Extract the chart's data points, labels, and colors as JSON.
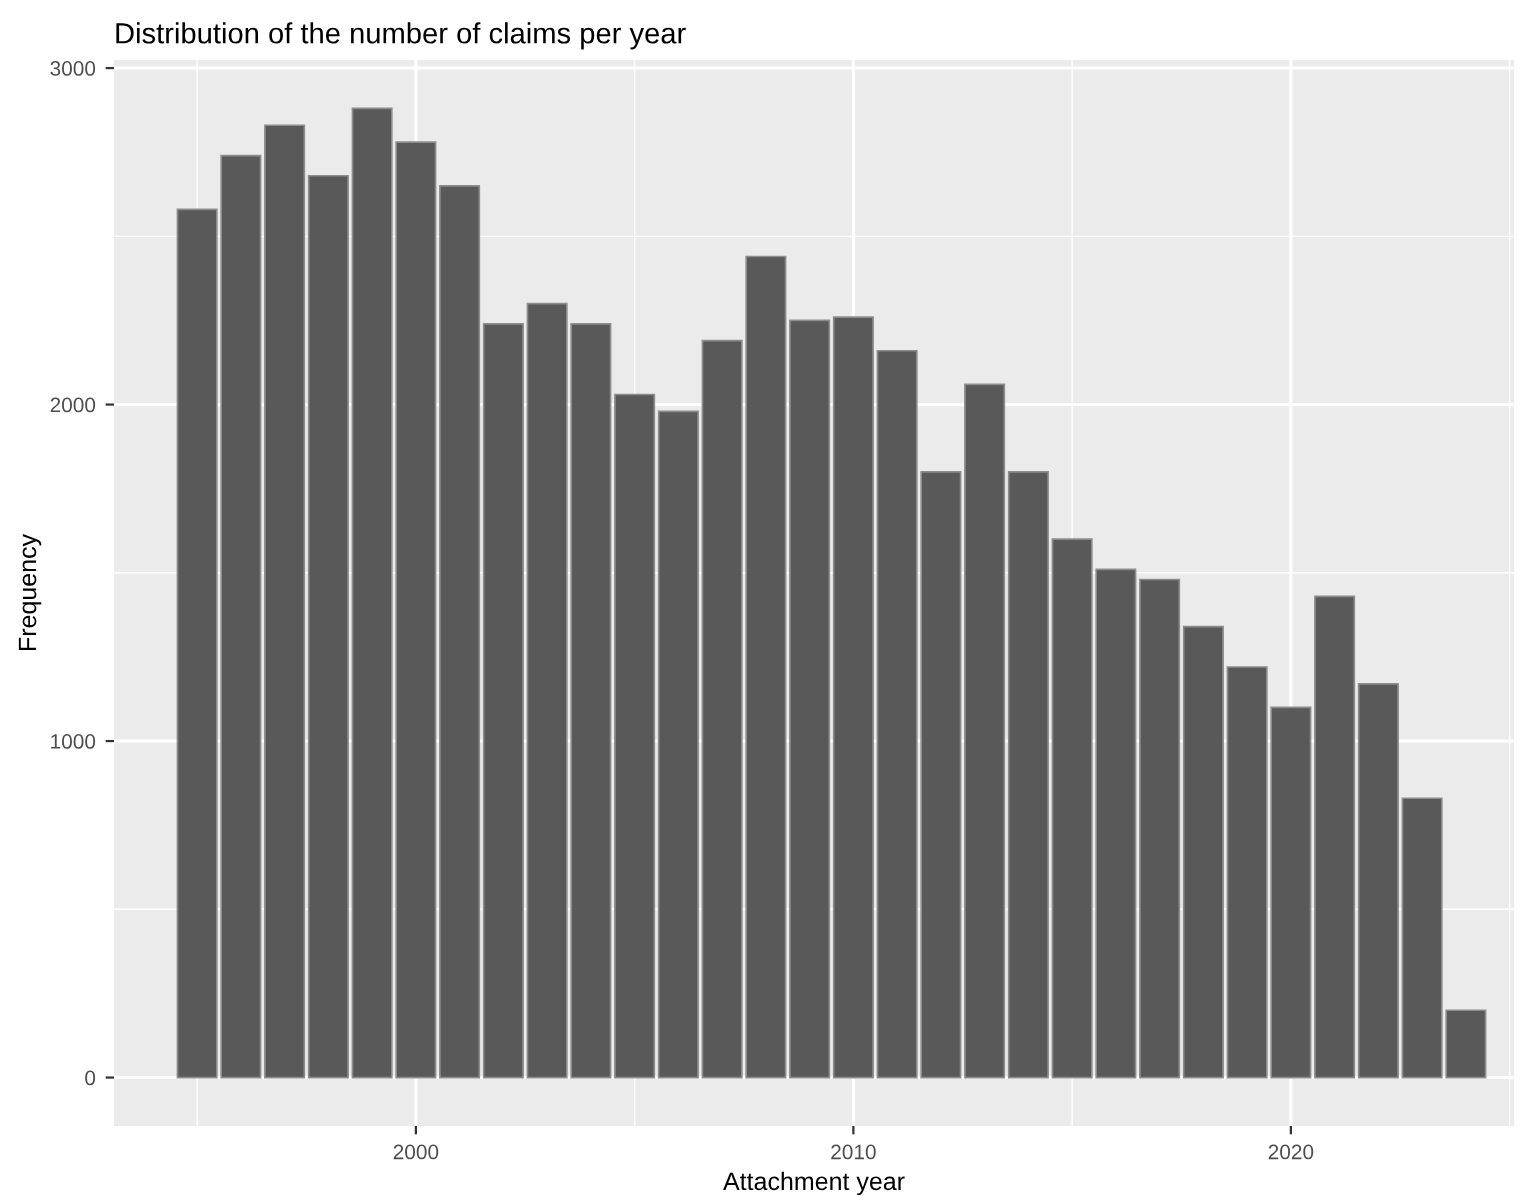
{
  "chart_data": {
    "type": "bar",
    "title": "Distribution of the number of claims per year",
    "xlabel": "Attachment year",
    "ylabel": "Frequency",
    "x": [
      1995,
      1996,
      1997,
      1998,
      1999,
      2000,
      2001,
      2002,
      2003,
      2004,
      2005,
      2006,
      2007,
      2008,
      2009,
      2010,
      2011,
      2012,
      2013,
      2014,
      2015,
      2016,
      2017,
      2018,
      2019,
      2020,
      2021,
      2022,
      2023,
      2024
    ],
    "values": [
      2580,
      2740,
      2830,
      2680,
      2880,
      2780,
      2650,
      2240,
      2300,
      2240,
      2030,
      1980,
      2190,
      2440,
      2250,
      2260,
      2160,
      1800,
      2060,
      1800,
      1600,
      1510,
      1480,
      1340,
      1220,
      1100,
      1430,
      1170,
      830,
      200
    ],
    "color": "#595959",
    "xlim": [
      1993.1,
      2025.1
    ],
    "xticks": [
      2000,
      2010,
      2020
    ],
    "ylim": [
      -144,
      3024
    ],
    "yticks": [
      0,
      1000,
      2000,
      3000
    ],
    "grid": true
  }
}
